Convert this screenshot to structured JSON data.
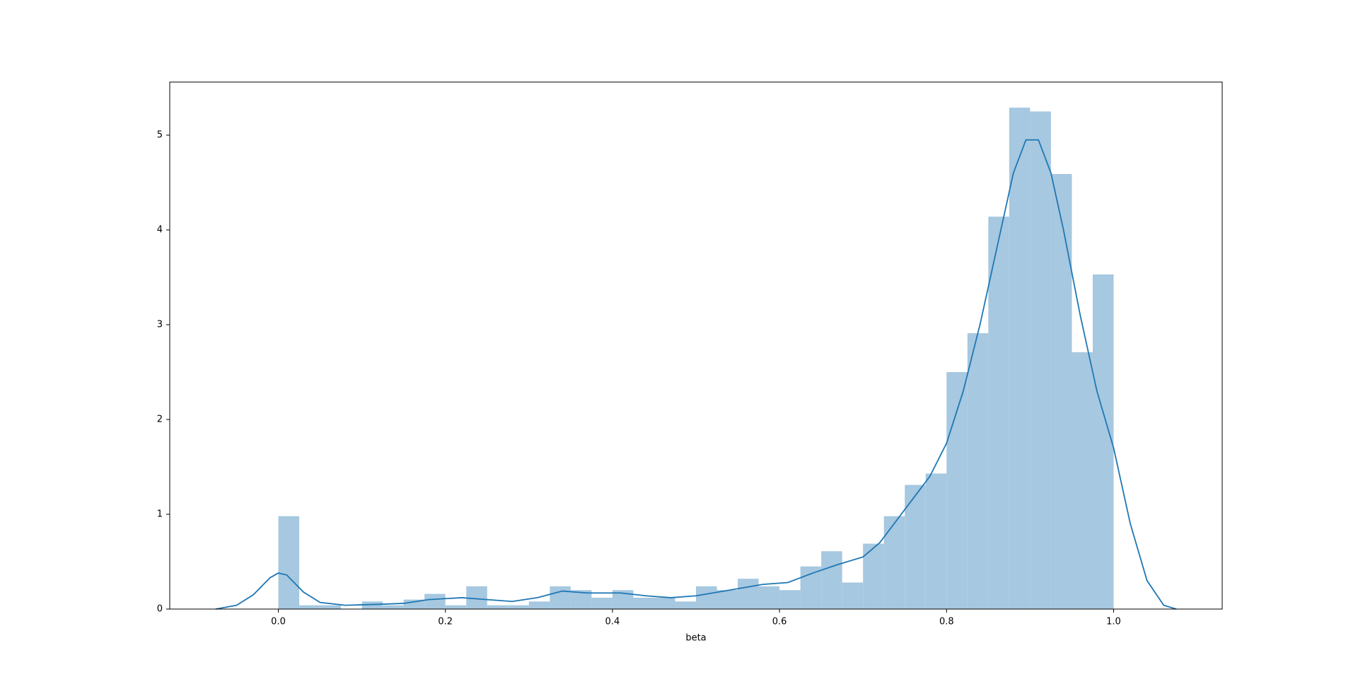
{
  "chart_data": {
    "type": "histogram",
    "xlabel": "beta",
    "bins": [
      0,
      0.025,
      0.05,
      0.075,
      0.1,
      0.125,
      0.15,
      0.175,
      0.2,
      0.225,
      0.25,
      0.275,
      0.3,
      0.325,
      0.35,
      0.375,
      0.4,
      0.425,
      0.45,
      0.475,
      0.5,
      0.525,
      0.55,
      0.575,
      0.6,
      0.625,
      0.65,
      0.675,
      0.7,
      0.725,
      0.75,
      0.775,
      0.8,
      0.825,
      0.85,
      0.875,
      0.9,
      0.925,
      0.95,
      0.975,
      1.0
    ],
    "counts": [
      0.98,
      0.04,
      0.04,
      0,
      0.08,
      0.04,
      0.1,
      0.16,
      0.04,
      0.24,
      0.04,
      0.04,
      0.08,
      0.24,
      0.2,
      0.12,
      0.2,
      0.12,
      0.12,
      0.08,
      0.24,
      0.2,
      0.32,
      0.24,
      0.2,
      0.45,
      0.61,
      0.28,
      0.69,
      0.98,
      1.31,
      1.43,
      2.5,
      2.91,
      4.14,
      5.29,
      5.25,
      4.59,
      2.71,
      3.53
    ],
    "color": "#a6c8e0",
    "kde": {
      "color": "#1f77b4",
      "x": [
        -0.075,
        -0.05,
        -0.03,
        -0.01,
        0.0,
        0.01,
        0.03,
        0.05,
        0.08,
        0.12,
        0.15,
        0.18,
        0.22,
        0.25,
        0.28,
        0.31,
        0.34,
        0.37,
        0.41,
        0.44,
        0.47,
        0.5,
        0.54,
        0.58,
        0.61,
        0.64,
        0.67,
        0.7,
        0.72,
        0.75,
        0.78,
        0.8,
        0.82,
        0.84,
        0.86,
        0.88,
        0.895,
        0.91,
        0.925,
        0.94,
        0.96,
        0.98,
        1.0,
        1.02,
        1.04,
        1.06,
        1.075
      ],
      "values": [
        0,
        0.04,
        0.15,
        0.33,
        0.38,
        0.36,
        0.18,
        0.07,
        0.04,
        0.05,
        0.06,
        0.1,
        0.12,
        0.1,
        0.08,
        0.12,
        0.19,
        0.17,
        0.17,
        0.14,
        0.12,
        0.14,
        0.2,
        0.26,
        0.28,
        0.38,
        0.47,
        0.55,
        0.7,
        1.05,
        1.4,
        1.75,
        2.3,
        3.0,
        3.8,
        4.6,
        4.95,
        4.95,
        4.6,
        4.0,
        3.1,
        2.3,
        1.7,
        0.9,
        0.3,
        0.04,
        0
      ]
    },
    "xlim": [
      -0.13,
      1.13
    ],
    "ylim": [
      0,
      5.56
    ],
    "xticks": [
      {
        "value": 0,
        "label": "0.0"
      },
      0.2,
      0.4,
      0.6,
      0.8,
      {
        "value": 1,
        "label": "1.0"
      }
    ],
    "yticks": [
      0,
      1,
      2,
      3,
      4,
      5
    ]
  }
}
